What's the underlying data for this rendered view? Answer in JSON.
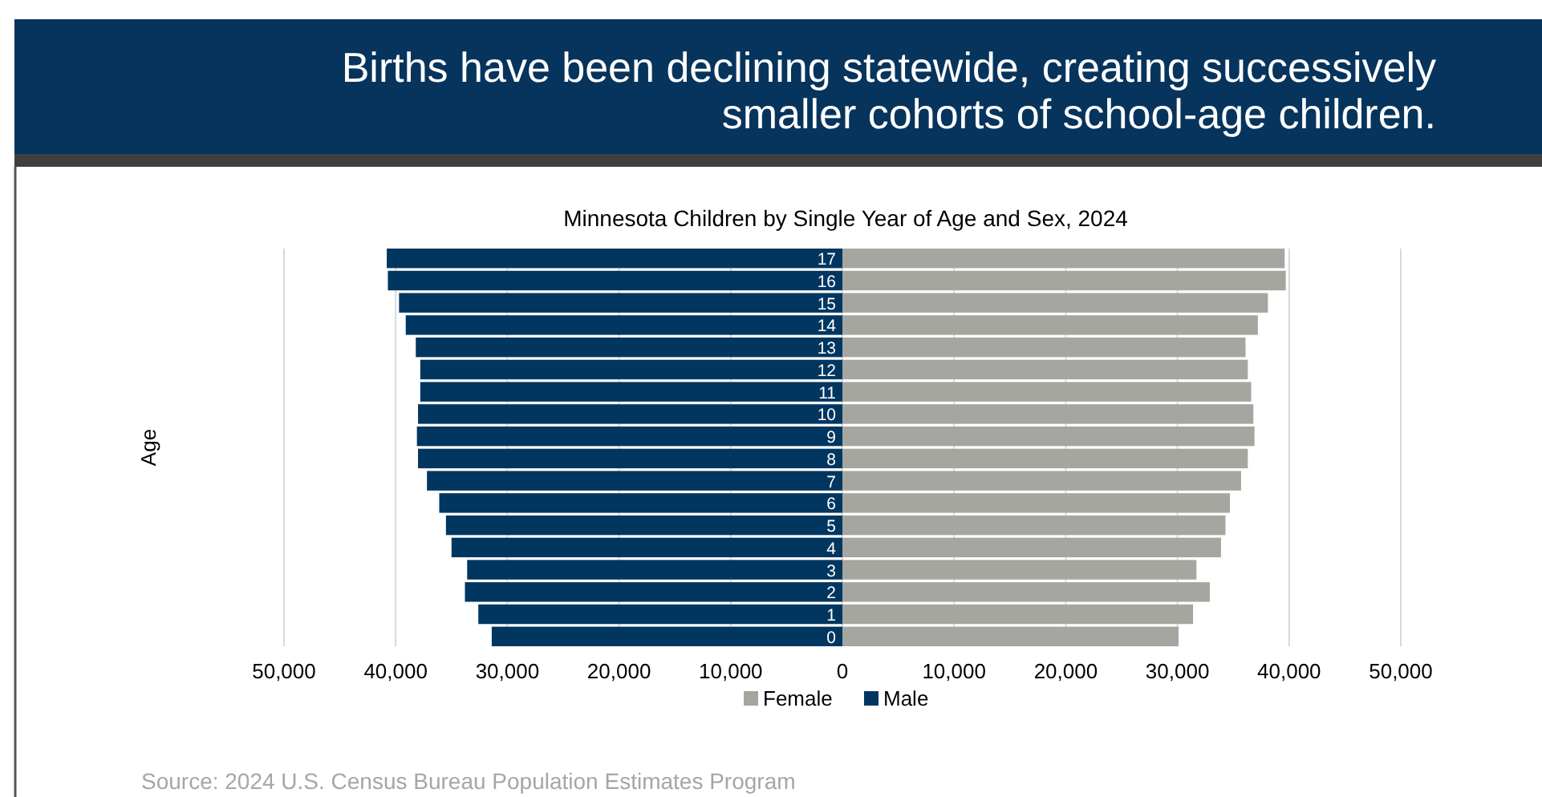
{
  "chart_data": {
    "type": "bar",
    "orientation": "horizontal",
    "stacked": true,
    "title": "Births have been declining statewide, creating successively smaller cohorts of school-age children.",
    "subtitle": "Minnesota Children by Single Year of Age and Sex, 2024",
    "ylabel": "Age",
    "categories": [
      "17",
      "16",
      "15",
      "14",
      "13",
      "12",
      "11",
      "10",
      "9",
      "8",
      "7",
      "6",
      "5",
      "4",
      "3",
      "2",
      "1",
      "0"
    ],
    "series": [
      {
        "name": "Male",
        "color": "#003660",
        "values": [
          -40800,
          -40700,
          -39700,
          -39100,
          -38200,
          -37800,
          -37800,
          -38000,
          -38100,
          -38000,
          -37200,
          -36100,
          -35500,
          -35000,
          -33600,
          -33800,
          -32600,
          -31400
        ]
      },
      {
        "name": "Female",
        "color": "#a6a6a0",
        "values": [
          39600,
          39700,
          38100,
          37200,
          36100,
          36300,
          36600,
          36800,
          36900,
          36300,
          35700,
          34700,
          34300,
          33900,
          31700,
          32900,
          31400,
          30100
        ]
      }
    ],
    "xlim": [
      -50000,
      50000
    ],
    "xticks": [
      {
        "value": -50000,
        "label": "50,000"
      },
      {
        "value": -40000,
        "label": "40,000"
      },
      {
        "value": -30000,
        "label": "30,000"
      },
      {
        "value": -20000,
        "label": "20,000"
      },
      {
        "value": -10000,
        "label": "10,000"
      },
      0,
      {
        "value": 10000,
        "label": "10,000"
      },
      {
        "value": 20000,
        "label": "20,000"
      },
      {
        "value": 30000,
        "label": "30,000"
      },
      {
        "value": 40000,
        "label": "40,000"
      },
      {
        "value": 50000,
        "label": "50,000"
      }
    ],
    "grid": "x",
    "legend": "bottom",
    "annotations": [
      "Source: 2024 U.S. Census Bureau Population Estimates Program"
    ]
  }
}
